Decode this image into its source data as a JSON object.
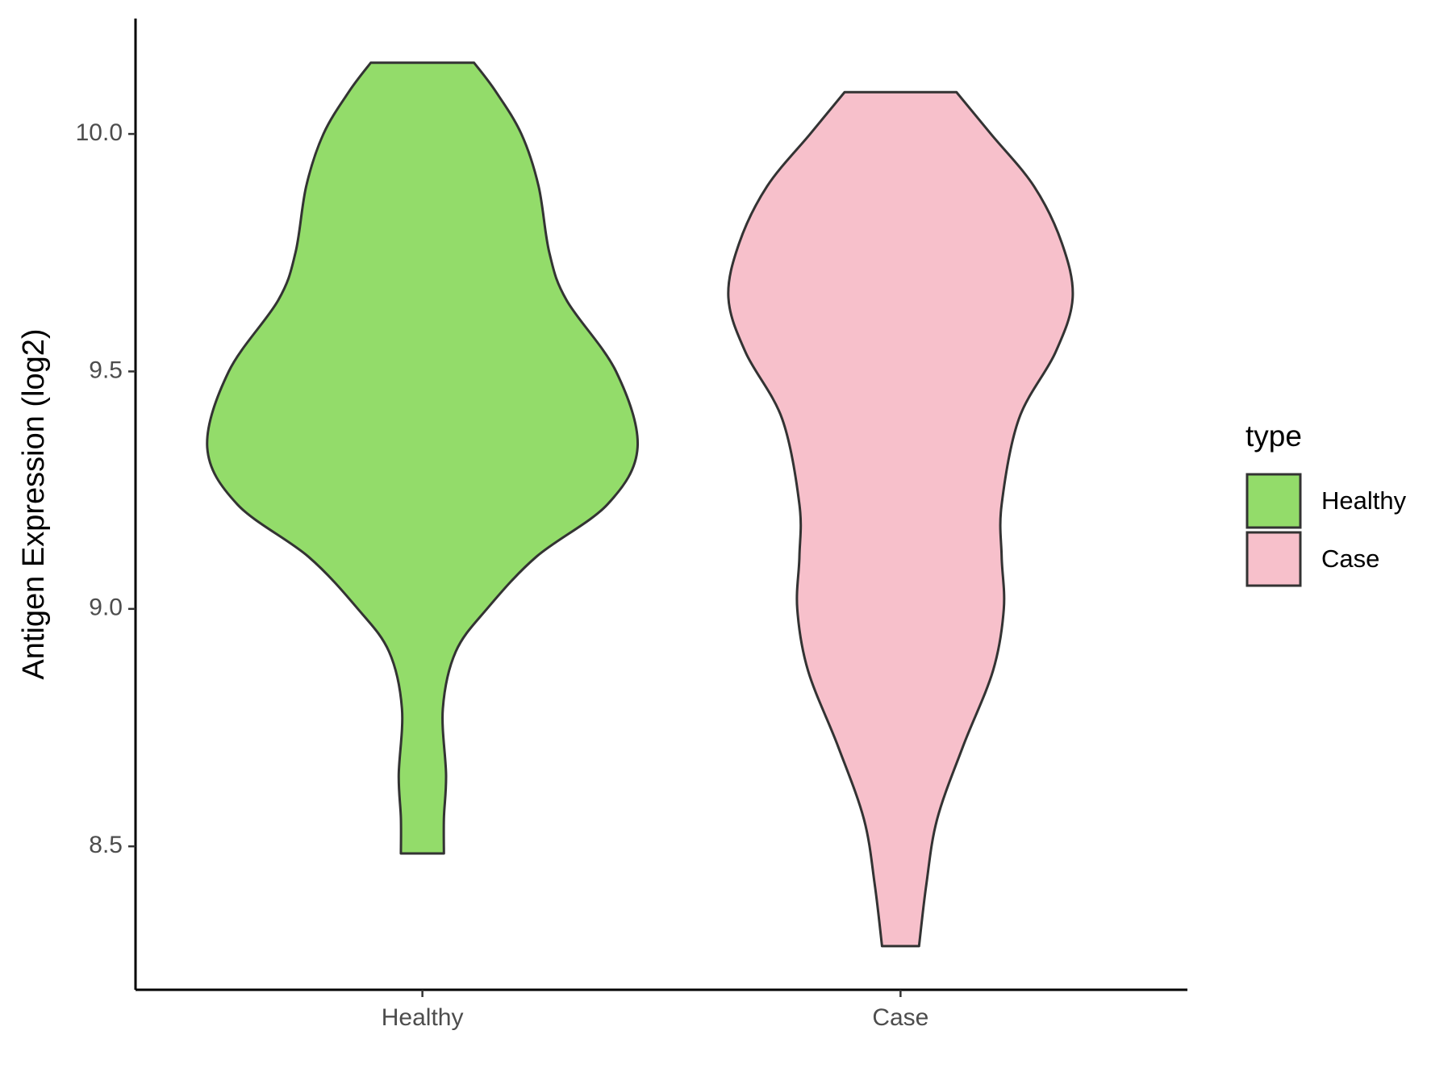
{
  "chart_data": {
    "type": "violin",
    "y_label": "Antigen Expression (log2)",
    "categories": [
      "Healthy",
      "Case"
    ],
    "legend_title": "type",
    "ylim": [
      8.198,
      10.243
    ],
    "yticks": [
      {
        "value": 8.5,
        "label": "8.5"
      },
      {
        "value": 9,
        "label": "9.0"
      },
      {
        "value": 9.5,
        "label": "9.5"
      },
      {
        "value": 10,
        "label": "10.0"
      }
    ],
    "series": [
      {
        "name": "Healthy",
        "color": "#93dc6a",
        "values": [
          8.485,
          8.56,
          8.65,
          8.79,
          8.91,
          9.0,
          9.11,
          9.22,
          9.34,
          9.5,
          9.65,
          9.75,
          9.89,
          10.0,
          10.09,
          10.15
        ],
        "density": [
          0.1,
          0.1,
          0.11,
          0.095,
          0.155,
          0.3,
          0.53,
          0.86,
          1.0,
          0.9,
          0.67,
          0.59,
          0.54,
          0.46,
          0.34,
          0.24
        ]
      },
      {
        "name": "Case",
        "color": "#f7c0cb",
        "values": [
          8.29,
          8.42,
          8.557,
          8.71,
          8.87,
          9.0,
          9.11,
          9.22,
          9.4,
          9.54,
          9.655,
          9.77,
          9.89,
          10.0,
          10.088
        ],
        "density": [
          0.086,
          0.12,
          0.17,
          0.29,
          0.43,
          0.48,
          0.47,
          0.47,
          0.55,
          0.72,
          0.8,
          0.75,
          0.62,
          0.42,
          0.26
        ]
      }
    ]
  }
}
